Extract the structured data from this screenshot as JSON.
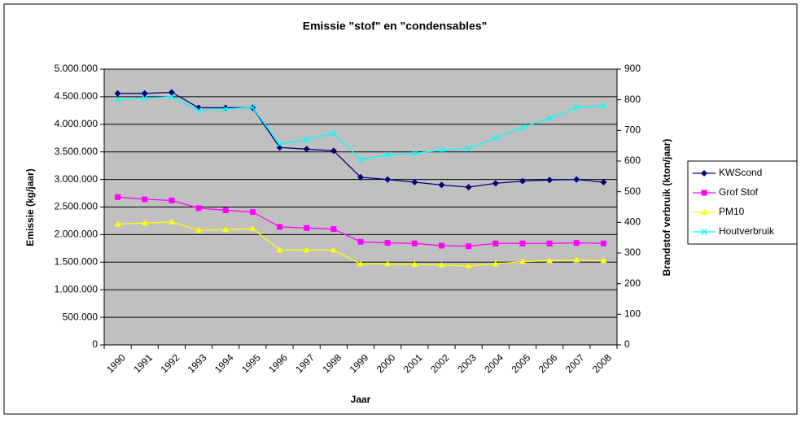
{
  "chart_data": {
    "type": "line",
    "title": "Emissie \"stof\" en \"condensables\"",
    "x_label": "Jaar",
    "y_label": "Emissie (kg/jaar)",
    "y2_label": "Brandstof verbruik (kton/jaar)",
    "categories": [
      "1990",
      "1991",
      "1992",
      "1993",
      "1994",
      "1995",
      "1996",
      "1997",
      "1998",
      "1999",
      "2000",
      "2001",
      "2002",
      "2003",
      "2004",
      "2005",
      "2006",
      "2007",
      "2008"
    ],
    "ylim": [
      0,
      5000000
    ],
    "yticks": [
      {
        "value": 0,
        "label": "0"
      },
      {
        "value": 500000,
        "label": "500.000"
      },
      {
        "value": 1000000,
        "label": "1.000.000"
      },
      {
        "value": 1500000,
        "label": "1.500.000"
      },
      {
        "value": 2000000,
        "label": "2.000.000"
      },
      {
        "value": 2500000,
        "label": "2.500.000"
      },
      {
        "value": 3000000,
        "label": "3.000.000"
      },
      {
        "value": 3500000,
        "label": "3.500.000"
      },
      {
        "value": 4000000,
        "label": "4.000.000"
      },
      {
        "value": 4500000,
        "label": "4.500.000"
      },
      {
        "value": 5000000,
        "label": "5.000.000"
      }
    ],
    "y2lim": [
      0,
      900
    ],
    "y2ticks": [
      0,
      100,
      200,
      300,
      400,
      500,
      600,
      700,
      800,
      900
    ],
    "grid": true,
    "legend": "right",
    "series": [
      {
        "name": "KWScond",
        "color": "#000080",
        "marker": "diamond",
        "values": [
          4560000,
          4560000,
          4580000,
          4300000,
          4300000,
          4300000,
          3580000,
          3550000,
          3520000,
          3040000,
          3000000,
          2950000,
          2900000,
          2860000,
          2930000,
          2970000,
          2990000,
          3000000,
          2950000
        ]
      },
      {
        "name": "Grof Stof",
        "color": "#ff00ff",
        "marker": "square",
        "values": [
          2680000,
          2640000,
          2620000,
          2480000,
          2440000,
          2410000,
          2140000,
          2120000,
          2100000,
          1870000,
          1850000,
          1840000,
          1800000,
          1790000,
          1840000,
          1840000,
          1840000,
          1850000,
          1840000
        ]
      },
      {
        "name": "PM10",
        "color": "#ffff00",
        "marker": "triangle",
        "values": [
          2190000,
          2210000,
          2230000,
          2080000,
          2090000,
          2110000,
          1720000,
          1720000,
          1720000,
          1470000,
          1470000,
          1460000,
          1450000,
          1430000,
          1470000,
          1510000,
          1530000,
          1540000,
          1530000
        ]
      },
      {
        "name": "Houtverbruik",
        "color": "#00ffff",
        "marker": "x",
        "axis": "y2",
        "values": [
          800,
          805,
          810,
          765,
          770,
          775,
          655,
          670,
          690,
          605,
          620,
          625,
          635,
          640,
          675,
          710,
          740,
          775,
          780
        ]
      }
    ]
  }
}
